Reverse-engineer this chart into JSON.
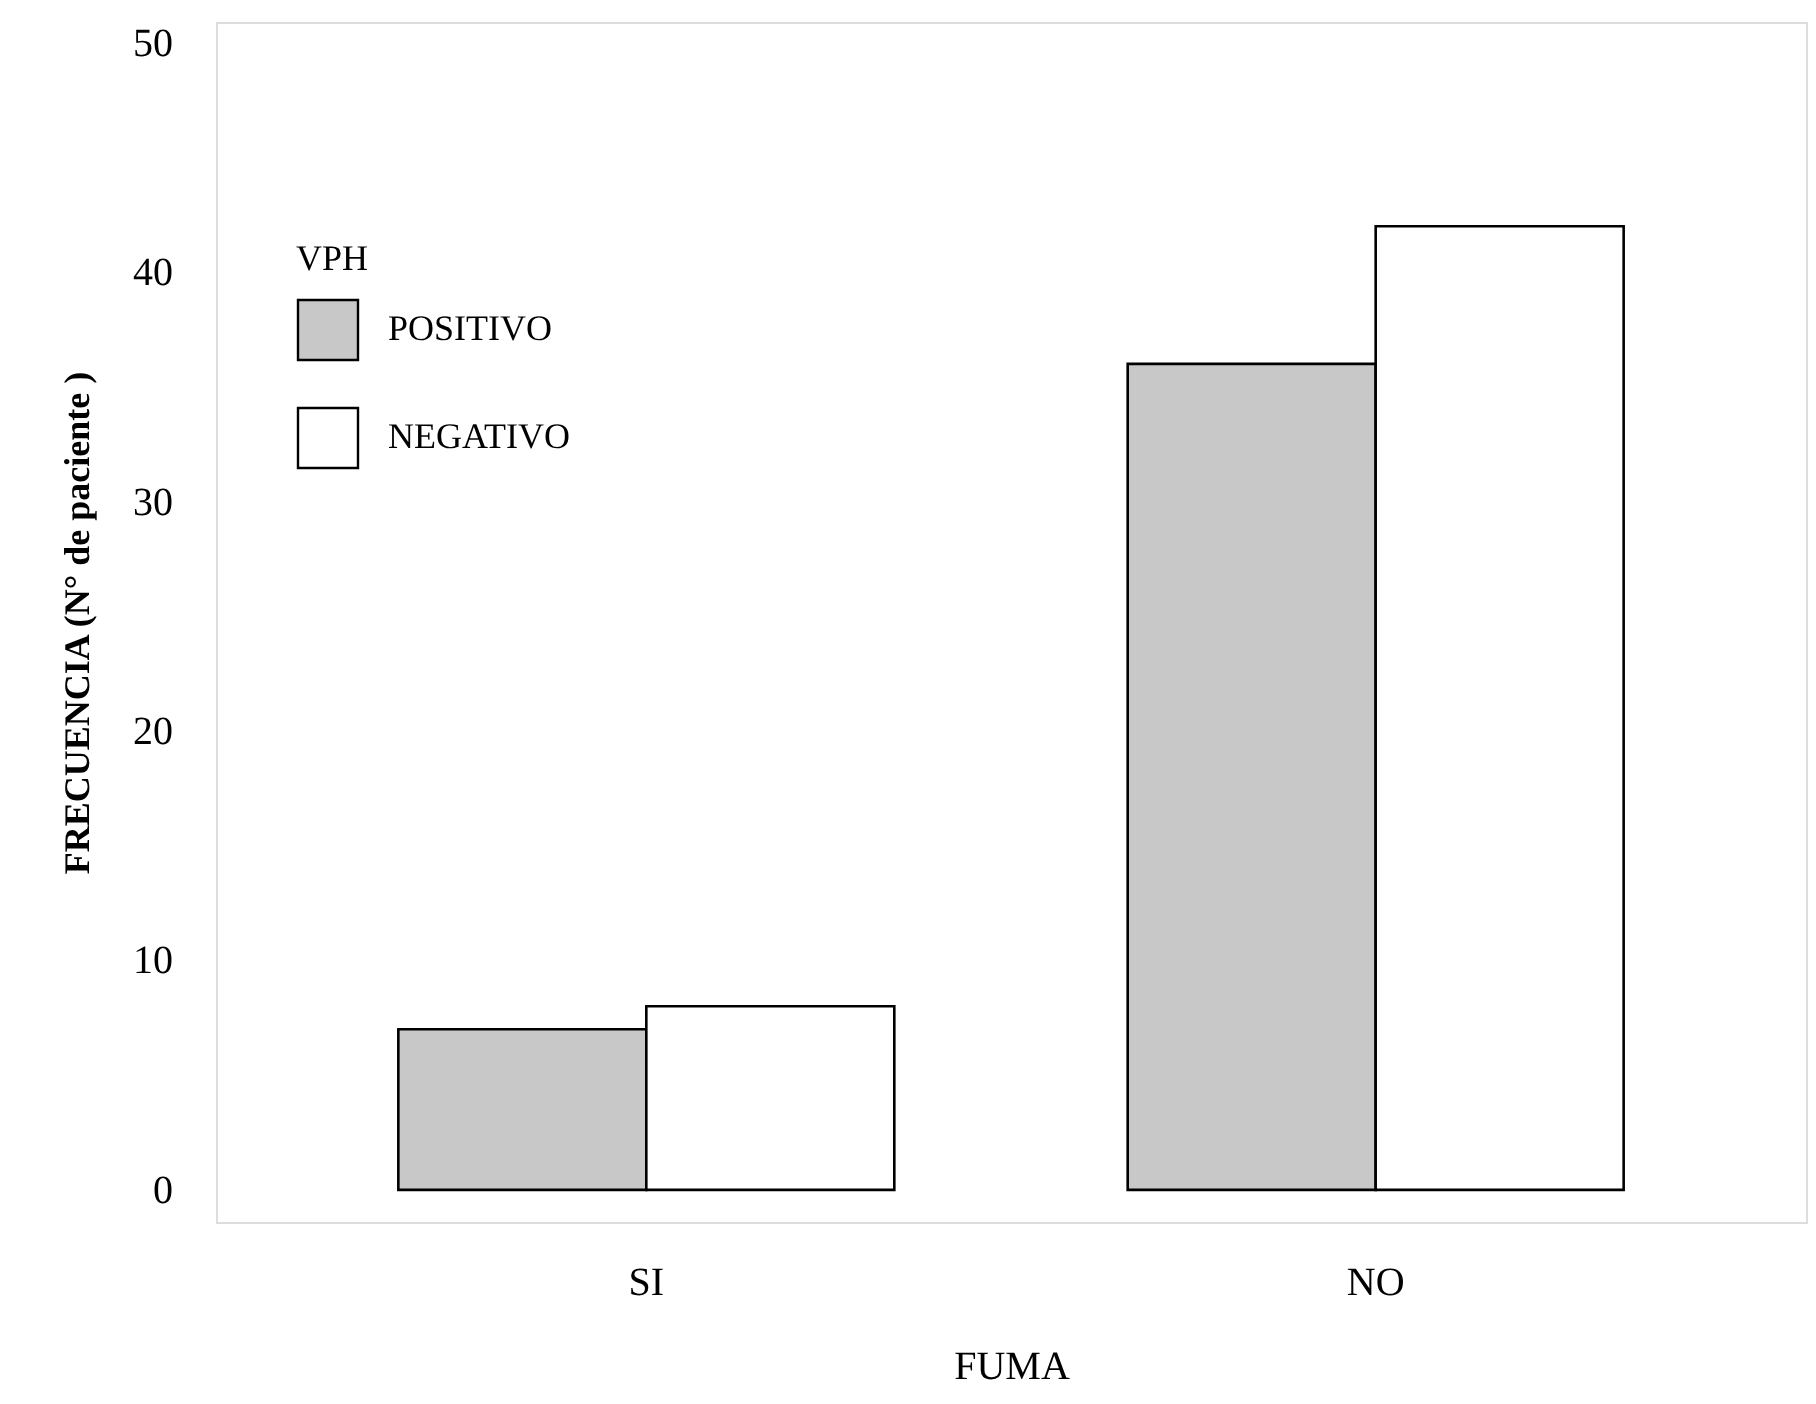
{
  "chart_data": {
    "type": "bar",
    "xlabel": "FUMA",
    "ylabel": "FRECUENCIA  (N° de paciente )",
    "legend_title": "VPH",
    "categories": [
      "SI",
      "NO"
    ],
    "series": [
      {
        "name": "POSITIVO",
        "color": "#c8c8c8",
        "values": [
          7,
          36
        ]
      },
      {
        "name": "NEGATIVO",
        "color": "#ffffff",
        "values": [
          8,
          42
        ]
      }
    ],
    "ylim": [
      -1.4,
      50.9
    ],
    "yticks": [
      0,
      10,
      20,
      30,
      40,
      50
    ],
    "grid": false,
    "legend": "top left"
  }
}
